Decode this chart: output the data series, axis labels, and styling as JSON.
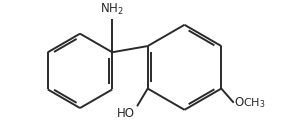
{
  "bg_color": "#ffffff",
  "line_color": "#2a2a2a",
  "text_color": "#2a2a2a",
  "lw": 1.4,
  "font_size": 8.5,
  "figsize": [
    2.84,
    1.36
  ],
  "dpi": 100
}
